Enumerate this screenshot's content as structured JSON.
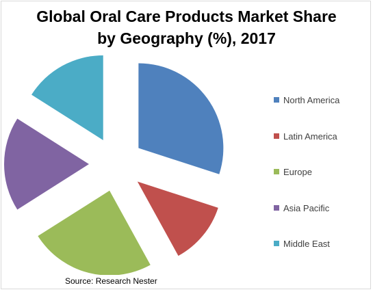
{
  "chart_data": {
    "type": "pie",
    "title": "Global Oral Care Products Market Share by Geography (%), 2017",
    "title_lines": [
      "Global Oral Care Products Market Share",
      "by Geography (%), 2017"
    ],
    "categories": [
      "North America",
      "Latin America",
      "Europe",
      "Asia Pacific",
      "Middle East"
    ],
    "values": [
      30,
      12,
      24,
      18,
      16
    ],
    "colors": [
      "#4f81bd",
      "#c0504d",
      "#9bbb59",
      "#8064a2",
      "#4bacc6"
    ],
    "exploded": true,
    "legend_position": "right",
    "source": "Source: Research Nester"
  }
}
